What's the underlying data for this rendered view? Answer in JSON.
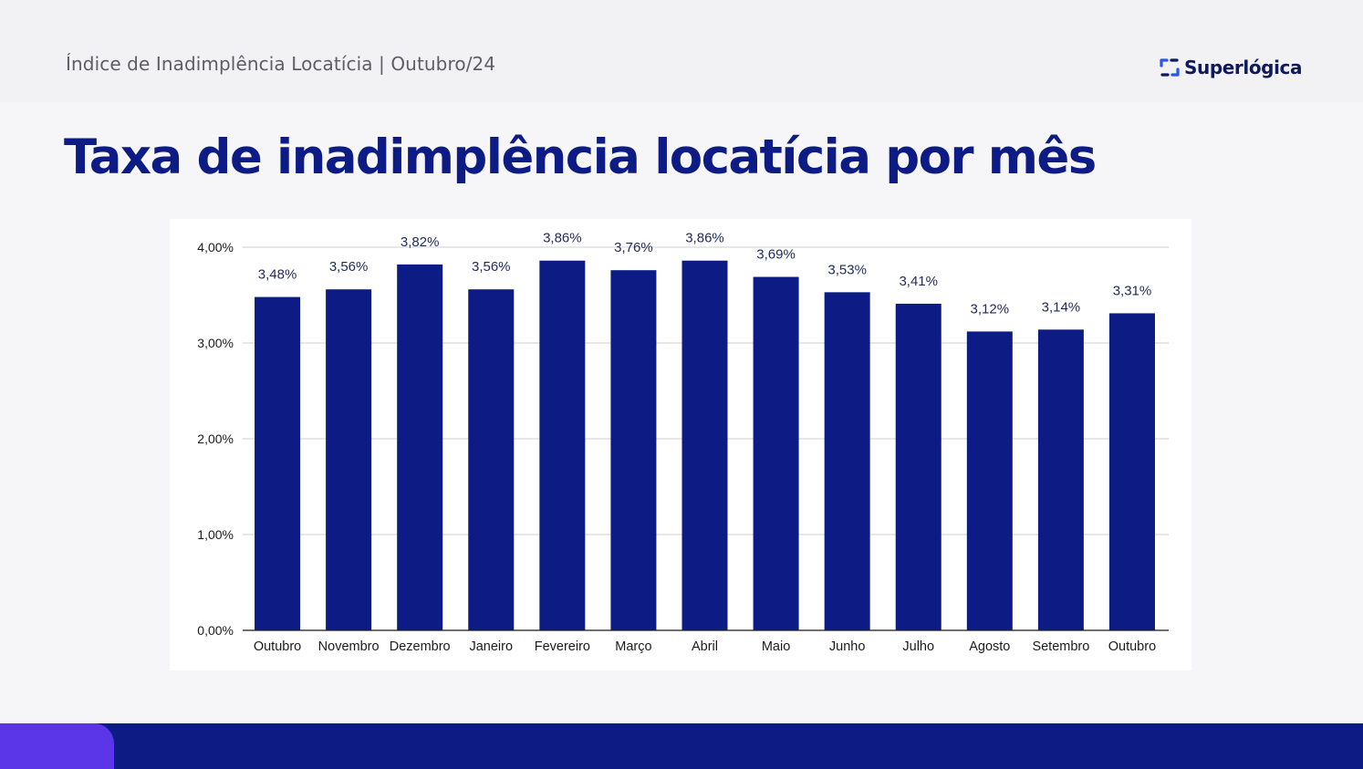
{
  "header": {
    "subtitle": "Índice de Inadimplência Locatícia | Outubro/24",
    "brand": "Superlógica",
    "brand_icon": "superlogica-logo-icon"
  },
  "title": "Taxa de inadimplência locatícia por mês",
  "colors": {
    "title": "#0c1c84",
    "bar": "#0c1c84",
    "footer": "#0c1c84",
    "footer_accent": "#5b35e8",
    "logo_text": "#0f1a5c",
    "logo_mark": "#2d55e6"
  },
  "chart_data": {
    "type": "bar",
    "categories": [
      "Outubro",
      "Novembro",
      "Dezembro",
      "Janeiro",
      "Fevereiro",
      "Março",
      "Abril",
      "Maio",
      "Junho",
      "Julho",
      "Agosto",
      "Setembro",
      "Outubro"
    ],
    "values": [
      3.48,
      3.56,
      3.82,
      3.56,
      3.86,
      3.76,
      3.86,
      3.69,
      3.53,
      3.41,
      3.12,
      3.14,
      3.31
    ],
    "data_labels": [
      "3,48%",
      "3,56%",
      "3,82%",
      "3,56%",
      "3,86%",
      "3,76%",
      "3,86%",
      "3,69%",
      "3,53%",
      "3,41%",
      "3,12%",
      "3,14%",
      "3,31%"
    ],
    "yticks": [
      0,
      1,
      2,
      3,
      4
    ],
    "ytick_labels": [
      "0,00%",
      "1,00%",
      "2,00%",
      "3,00%",
      "4,00%"
    ],
    "ylim": [
      0,
      4
    ],
    "grid": true,
    "title": "",
    "xlabel": "",
    "ylabel": ""
  }
}
